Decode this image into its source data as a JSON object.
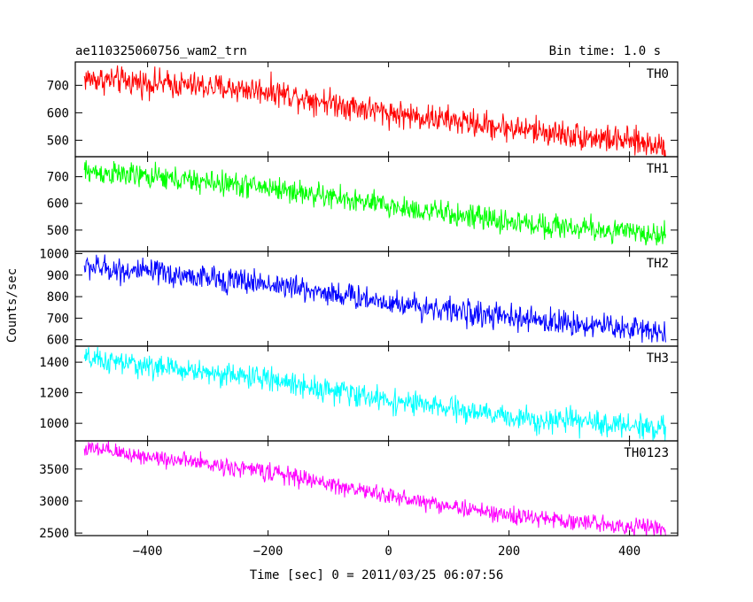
{
  "chart_data": {
    "type": "line",
    "title_left": "ae110325060756_wam2_trn",
    "title_right": "Bin time: 1.0 s",
    "xlabel": "Time [sec] 0 = 2011/03/25 06:07:56",
    "ylabel": "Counts/sec",
    "xlim": [
      -520,
      480
    ],
    "x_ticks": [
      -400,
      -200,
      0,
      200,
      400
    ],
    "x_tick_labels": [
      "−400",
      "−200",
      "0",
      "200",
      "400"
    ],
    "x_range_data": [
      -505,
      460
    ],
    "grid": false,
    "panels": [
      {
        "name": "TH0",
        "color": "#ff0000",
        "ylim": [
          440,
          785
        ],
        "y_ticks": [
          500,
          600,
          700
        ],
        "trend": [
          [
            -505,
            725
          ],
          [
            -200,
            680
          ],
          [
            0,
            600
          ],
          [
            200,
            545
          ],
          [
            460,
            480
          ]
        ],
        "noise": 55
      },
      {
        "name": "TH1",
        "color": "#00ff00",
        "ylim": [
          420,
          775
        ],
        "y_ticks": [
          500,
          600,
          700
        ],
        "trend": [
          [
            -505,
            720
          ],
          [
            -200,
            660
          ],
          [
            0,
            590
          ],
          [
            200,
            530
          ],
          [
            460,
            480
          ]
        ],
        "noise": 50
      },
      {
        "name": "TH2",
        "color": "#0000ff",
        "ylim": [
          570,
          1010
        ],
        "y_ticks": [
          600,
          700,
          800,
          900,
          1000
        ],
        "trend": [
          [
            -505,
            940
          ],
          [
            -200,
            860
          ],
          [
            0,
            775
          ],
          [
            200,
            700
          ],
          [
            460,
            640
          ]
        ],
        "noise": 65
      },
      {
        "name": "TH3",
        "color": "#00ffff",
        "ylim": [
          885,
          1505
        ],
        "y_ticks": [
          1000,
          1200,
          1400
        ],
        "trend": [
          [
            -505,
            1420
          ],
          [
            -200,
            1290
          ],
          [
            0,
            1150
          ],
          [
            200,
            1040
          ],
          [
            460,
            970
          ]
        ],
        "noise": 85
      },
      {
        "name": "TH0123",
        "color": "#ff00ff",
        "ylim": [
          2460,
          3940
        ],
        "y_ticks": [
          2500,
          3000,
          3500
        ],
        "trend": [
          [
            -505,
            3820
          ],
          [
            -200,
            3460
          ],
          [
            0,
            3080
          ],
          [
            200,
            2770
          ],
          [
            460,
            2560
          ]
        ],
        "noise": 150
      }
    ]
  }
}
